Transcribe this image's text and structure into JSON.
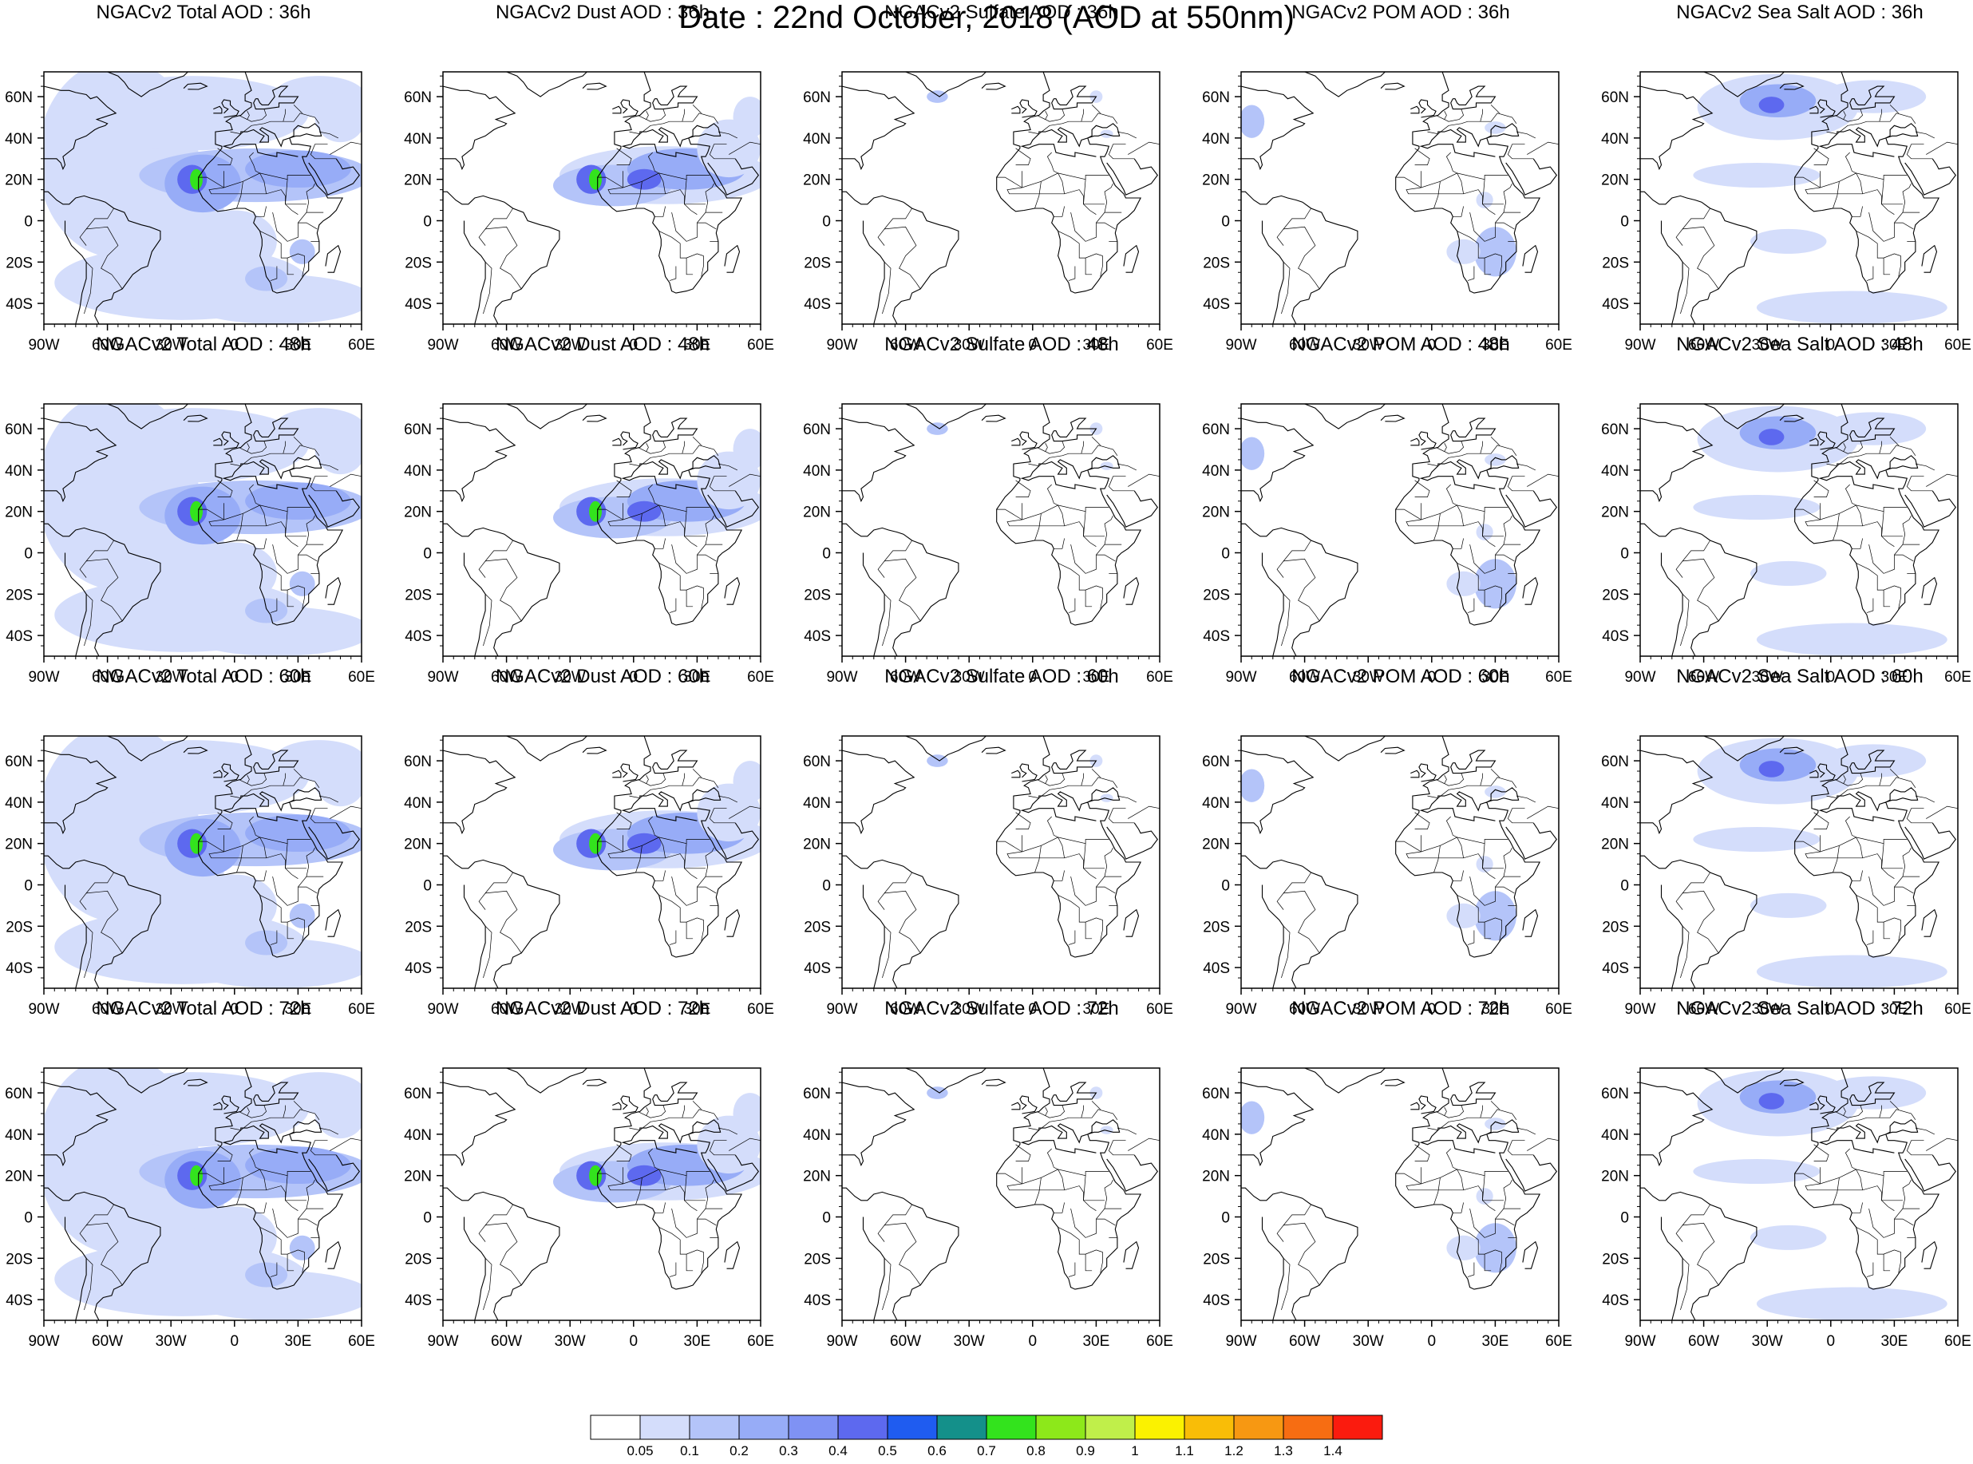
{
  "title": "Date : 22nd October, 2018 (AOD at 550nm)",
  "axes": {
    "lon_labels": [
      "90W",
      "60W",
      "30W",
      "0",
      "30E",
      "60E"
    ],
    "lat_labels": [
      "60N",
      "40N",
      "20N",
      "0",
      "20S",
      "40S"
    ]
  },
  "panels": [
    {
      "title": "NGACv2 Total AOD : 36h",
      "kind": "total"
    },
    {
      "title": "NGACv2 Dust AOD : 36h",
      "kind": "dust"
    },
    {
      "title": "NGACv2 Sulfate AOD : 36h",
      "kind": "sulfate"
    },
    {
      "title": "NGACv2 POM AOD : 36h",
      "kind": "pom"
    },
    {
      "title": "NGACv2 Sea Salt AOD : 36h",
      "kind": "seasalt"
    },
    {
      "title": "NGACv2 Total AOD : 48h",
      "kind": "total"
    },
    {
      "title": "NGACv2 Dust AOD : 48h",
      "kind": "dust"
    },
    {
      "title": "NGACv2 Sulfate AOD : 48h",
      "kind": "sulfate"
    },
    {
      "title": "NGACv2 POM AOD : 48h",
      "kind": "pom"
    },
    {
      "title": "NGACv2 Sea Salt AOD : 48h",
      "kind": "seasalt"
    },
    {
      "title": "NGACv2 Total AOD : 60h",
      "kind": "total"
    },
    {
      "title": "NGACv2 Dust AOD : 60h",
      "kind": "dust"
    },
    {
      "title": "NGACv2 Sulfate AOD : 60h",
      "kind": "sulfate"
    },
    {
      "title": "NGACv2 POM AOD : 60h",
      "kind": "pom"
    },
    {
      "title": "NGACv2 Sea Salt AOD : 60h",
      "kind": "seasalt"
    },
    {
      "title": "NGACv2 Total AOD : 72h",
      "kind": "total"
    },
    {
      "title": "NGACv2 Dust AOD : 72h",
      "kind": "dust"
    },
    {
      "title": "NGACv2 Sulfate AOD : 72h",
      "kind": "sulfate"
    },
    {
      "title": "NGACv2 POM AOD : 72h",
      "kind": "pom"
    },
    {
      "title": "NGACv2 Sea Salt  AOD : 72h",
      "kind": "seasalt"
    }
  ],
  "colorbar": {
    "labels": [
      "0.05",
      "0.1",
      "0.2",
      "0.3",
      "0.4",
      "0.5",
      "0.6",
      "0.7",
      "0.8",
      "0.9",
      "1",
      "1.1",
      "1.2",
      "1.3",
      "1.4"
    ],
    "colors": [
      "#ffffff",
      "#d4ddfb",
      "#b4c4f9",
      "#97acf7",
      "#7f92f4",
      "#5d69ef",
      "#1f5cf0",
      "#14908a",
      "#33e31d",
      "#8de81a",
      "#c0ef4a",
      "#fbf200",
      "#f9bd07",
      "#f79812",
      "#f76d12",
      "#fb1b0e"
    ]
  },
  "chart_data": {
    "type": "heatmap",
    "title": "Date : 22nd October, 2018 (AOD at 550nm)",
    "variables": [
      "Total AOD",
      "Dust AOD",
      "Sulfate AOD",
      "POM AOD",
      "Sea Salt AOD"
    ],
    "forecast_hours": [
      "36h",
      "48h",
      "60h",
      "72h"
    ],
    "lon_range": [
      "90W",
      "60E"
    ],
    "lat_range": [
      "50S",
      "72N"
    ],
    "levels": [
      0.05,
      0.1,
      0.2,
      0.3,
      0.4,
      0.5,
      0.6,
      0.7,
      0.8,
      0.9,
      1,
      1.1,
      1.2,
      1.3,
      1.4
    ]
  }
}
